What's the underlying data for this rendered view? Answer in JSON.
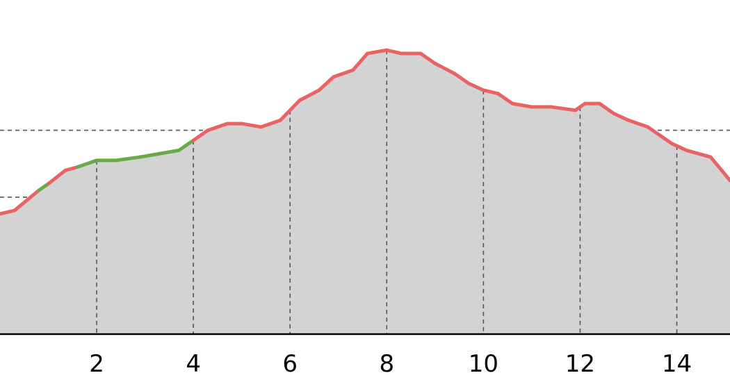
{
  "chart_data": {
    "type": "area",
    "title": "",
    "xlabel": "",
    "ylabel": "",
    "xlim": [
      0.0,
      15.1
    ],
    "ylim": [
      0,
      10
    ],
    "x_ticks": [
      2,
      4,
      6,
      8,
      10,
      12,
      14
    ],
    "x_tick_labels": [
      "2",
      "4",
      "6",
      "8",
      "10",
      "12",
      "14"
    ],
    "y_gridlines": [
      2.0,
      4.1,
      6.1
    ],
    "grid": true,
    "fill_color": "#d3d3d3",
    "line_colors": {
      "default": "#e86464",
      "highlight": "#6aaa4a"
    },
    "series": [
      {
        "x": [
          0.0,
          0.3,
          0.8,
          1.0,
          1.35,
          1.6,
          2.0,
          2.4,
          2.9,
          3.3,
          3.7,
          4.0,
          4.3,
          4.7,
          5.0,
          5.4,
          5.8,
          6.2,
          6.6,
          6.9,
          7.3,
          7.6,
          8.0,
          8.3,
          8.7,
          9.0,
          9.4,
          9.7,
          10.0,
          10.3,
          10.6,
          11.0,
          11.4,
          11.9,
          12.1,
          12.4,
          12.7,
          13.0,
          13.4,
          13.9,
          14.2,
          14.7,
          15.1
        ],
        "y": [
          3.6,
          3.7,
          4.3,
          4.5,
          4.9,
          5.0,
          5.2,
          5.2,
          5.3,
          5.4,
          5.5,
          5.8,
          6.1,
          6.3,
          6.3,
          6.2,
          6.4,
          7.0,
          7.3,
          7.7,
          7.9,
          8.4,
          8.5,
          8.4,
          8.4,
          8.1,
          7.8,
          7.5,
          7.3,
          7.2,
          6.9,
          6.8,
          6.8,
          6.7,
          6.9,
          6.9,
          6.6,
          6.4,
          6.2,
          5.7,
          5.5,
          5.3,
          4.6
        ],
        "highlight_ranges": [
          [
            0.8,
            1.0
          ],
          [
            1.6,
            4.0
          ]
        ]
      }
    ]
  }
}
